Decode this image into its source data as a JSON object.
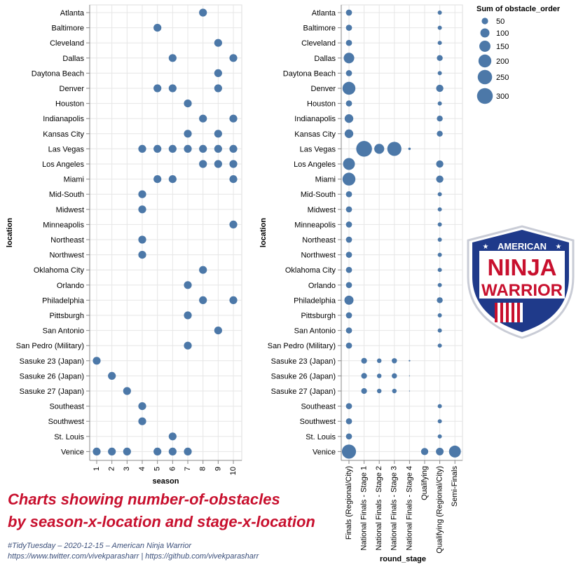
{
  "colors": {
    "mark": "#4c78a8",
    "grid": "#e6e6e6",
    "axis": "#888888",
    "caption_title": "#c8102e",
    "caption_meta": "#3b4f7a",
    "logo_blue": "#1f3a8a",
    "logo_red": "#c8102e"
  },
  "caption": {
    "title_lines": [
      "Charts showing number-of-obstacles",
      "by season-x-location and stage-x-location"
    ],
    "meta_lines": [
      "#TidyTuesday – 2020-12-15 – American Ninja Warrior",
      "https://www.twitter.com/vivekparasharr  |  https://github.com/vivekparasharr"
    ]
  },
  "logo": {
    "top_text": "AMERICAN",
    "mid_text": "NINJA",
    "bottom_text": "WARRIOR",
    "icon": "american-ninja-warrior-shield-logo"
  },
  "chart_data": [
    {
      "type": "scatter",
      "xlabel": "season",
      "ylabel": "location",
      "x_ticks": [
        1,
        2,
        3,
        4,
        5,
        6,
        7,
        8,
        9,
        10
      ],
      "xlim": [
        0.7,
        10.6
      ],
      "locations": [
        "Atlanta",
        "Baltimore",
        "Cleveland",
        "Dallas",
        "Daytona Beach",
        "Denver",
        "Houston",
        "Indianapolis",
        "Kansas City",
        "Las Vegas",
        "Los Angeles",
        "Miami",
        "Mid-South",
        "Midwest",
        "Minneapolis",
        "Northeast",
        "Northwest",
        "Oklahoma City",
        "Orlando",
        "Philadelphia",
        "Pittsburgh",
        "San Antonio",
        "San Pedro (Military)",
        "Sasuke 23 (Japan)",
        "Sasuke 26 (Japan)",
        "Sasuke 27 (Japan)",
        "Southeast",
        "Southwest",
        "St. Louis",
        "Venice"
      ],
      "points": [
        {
          "location": "Atlanta",
          "seasons": [
            8
          ]
        },
        {
          "location": "Baltimore",
          "seasons": [
            5
          ]
        },
        {
          "location": "Cleveland",
          "seasons": [
            9
          ]
        },
        {
          "location": "Dallas",
          "seasons": [
            6,
            10
          ]
        },
        {
          "location": "Daytona Beach",
          "seasons": [
            9
          ]
        },
        {
          "location": "Denver",
          "seasons": [
            5,
            6,
            9
          ]
        },
        {
          "location": "Houston",
          "seasons": [
            7
          ]
        },
        {
          "location": "Indianapolis",
          "seasons": [
            8,
            10
          ]
        },
        {
          "location": "Kansas City",
          "seasons": [
            7,
            9
          ]
        },
        {
          "location": "Las Vegas",
          "seasons": [
            4,
            5,
            6,
            7,
            8,
            9,
            10
          ]
        },
        {
          "location": "Los Angeles",
          "seasons": [
            8,
            9,
            10
          ]
        },
        {
          "location": "Miami",
          "seasons": [
            5,
            6,
            10
          ]
        },
        {
          "location": "Mid-South",
          "seasons": [
            4
          ]
        },
        {
          "location": "Midwest",
          "seasons": [
            4
          ]
        },
        {
          "location": "Minneapolis",
          "seasons": [
            10
          ]
        },
        {
          "location": "Northeast",
          "seasons": [
            4
          ]
        },
        {
          "location": "Northwest",
          "seasons": [
            4
          ]
        },
        {
          "location": "Oklahoma City",
          "seasons": [
            8
          ]
        },
        {
          "location": "Orlando",
          "seasons": [
            7
          ]
        },
        {
          "location": "Philadelphia",
          "seasons": [
            8,
            10
          ]
        },
        {
          "location": "Pittsburgh",
          "seasons": [
            7
          ]
        },
        {
          "location": "San Antonio",
          "seasons": [
            9
          ]
        },
        {
          "location": "San Pedro (Military)",
          "seasons": [
            7
          ]
        },
        {
          "location": "Sasuke 23 (Japan)",
          "seasons": [
            1
          ]
        },
        {
          "location": "Sasuke 26 (Japan)",
          "seasons": [
            2
          ]
        },
        {
          "location": "Sasuke 27 (Japan)",
          "seasons": [
            3
          ]
        },
        {
          "location": "Southeast",
          "seasons": [
            4
          ]
        },
        {
          "location": "Southwest",
          "seasons": [
            4
          ]
        },
        {
          "location": "St. Louis",
          "seasons": [
            6
          ]
        },
        {
          "location": "Venice",
          "seasons": [
            1,
            2,
            3,
            5,
            6,
            7
          ]
        }
      ]
    },
    {
      "type": "scatter",
      "xlabel": "round_stage",
      "ylabel": "location",
      "size_field": "Sum of obstacle_order",
      "stages": [
        "Finals (Regional/City)",
        "National Finals - Stage 1",
        "National Finals - Stage 2",
        "National Finals - Stage 3",
        "National Finals - Stage 4",
        "Qualifying",
        "Qualifying (Regional/City)",
        "Semi-Finals"
      ],
      "locations": [
        "Atlanta",
        "Baltimore",
        "Cleveland",
        "Dallas",
        "Daytona Beach",
        "Denver",
        "Houston",
        "Indianapolis",
        "Kansas City",
        "Las Vegas",
        "Los Angeles",
        "Miami",
        "Mid-South",
        "Midwest",
        "Minneapolis",
        "Northeast",
        "Northwest",
        "Oklahoma City",
        "Orlando",
        "Philadelphia",
        "Pittsburgh",
        "San Antonio",
        "San Pedro (Military)",
        "Sasuke 23 (Japan)",
        "Sasuke 26 (Japan)",
        "Sasuke 27 (Japan)",
        "Southeast",
        "Southwest",
        "St. Louis",
        "Venice"
      ],
      "legend": {
        "title": "Sum of obstacle_order",
        "values": [
          50,
          100,
          150,
          200,
          250,
          300
        ]
      },
      "points": [
        {
          "location": "Atlanta",
          "stage": "Finals (Regional/City)",
          "value": 45
        },
        {
          "location": "Atlanta",
          "stage": "Qualifying (Regional/City)",
          "value": 21
        },
        {
          "location": "Baltimore",
          "stage": "Finals (Regional/City)",
          "value": 45
        },
        {
          "location": "Baltimore",
          "stage": "Qualifying (Regional/City)",
          "value": 21
        },
        {
          "location": "Cleveland",
          "stage": "Finals (Regional/City)",
          "value": 45
        },
        {
          "location": "Cleveland",
          "stage": "Qualifying (Regional/City)",
          "value": 21
        },
        {
          "location": "Dallas",
          "stage": "Finals (Regional/City)",
          "value": 135
        },
        {
          "location": "Dallas",
          "stage": "Qualifying (Regional/City)",
          "value": 42
        },
        {
          "location": "Daytona Beach",
          "stage": "Finals (Regional/City)",
          "value": 45
        },
        {
          "location": "Daytona Beach",
          "stage": "Qualifying (Regional/City)",
          "value": 21
        },
        {
          "location": "Denver",
          "stage": "Finals (Regional/City)",
          "value": 200
        },
        {
          "location": "Denver",
          "stage": "Qualifying (Regional/City)",
          "value": 63
        },
        {
          "location": "Houston",
          "stage": "Finals (Regional/City)",
          "value": 45
        },
        {
          "location": "Houston",
          "stage": "Qualifying (Regional/City)",
          "value": 21
        },
        {
          "location": "Indianapolis",
          "stage": "Finals (Regional/City)",
          "value": 90
        },
        {
          "location": "Indianapolis",
          "stage": "Qualifying (Regional/City)",
          "value": 42
        },
        {
          "location": "Kansas City",
          "stage": "Finals (Regional/City)",
          "value": 90
        },
        {
          "location": "Kansas City",
          "stage": "Qualifying (Regional/City)",
          "value": 42
        },
        {
          "location": "Las Vegas",
          "stage": "National Finals - Stage 1",
          "value": 300
        },
        {
          "location": "Las Vegas",
          "stage": "National Finals - Stage 2",
          "value": 120
        },
        {
          "location": "Las Vegas",
          "stage": "National Finals - Stage 3",
          "value": 240
        },
        {
          "location": "Las Vegas",
          "stage": "National Finals - Stage 4",
          "value": 7
        },
        {
          "location": "Los Angeles",
          "stage": "Finals (Regional/City)",
          "value": 170
        },
        {
          "location": "Los Angeles",
          "stage": "Qualifying (Regional/City)",
          "value": 63
        },
        {
          "location": "Miami",
          "stage": "Finals (Regional/City)",
          "value": 200
        },
        {
          "location": "Miami",
          "stage": "Qualifying (Regional/City)",
          "value": 63
        },
        {
          "location": "Mid-South",
          "stage": "Finals (Regional/City)",
          "value": 45
        },
        {
          "location": "Mid-South",
          "stage": "Qualifying (Regional/City)",
          "value": 21
        },
        {
          "location": "Midwest",
          "stage": "Finals (Regional/City)",
          "value": 45
        },
        {
          "location": "Midwest",
          "stage": "Qualifying (Regional/City)",
          "value": 21
        },
        {
          "location": "Minneapolis",
          "stage": "Finals (Regional/City)",
          "value": 45
        },
        {
          "location": "Minneapolis",
          "stage": "Qualifying (Regional/City)",
          "value": 21
        },
        {
          "location": "Northeast",
          "stage": "Finals (Regional/City)",
          "value": 45
        },
        {
          "location": "Northeast",
          "stage": "Qualifying (Regional/City)",
          "value": 21
        },
        {
          "location": "Northwest",
          "stage": "Finals (Regional/City)",
          "value": 45
        },
        {
          "location": "Northwest",
          "stage": "Qualifying (Regional/City)",
          "value": 21
        },
        {
          "location": "Oklahoma City",
          "stage": "Finals (Regional/City)",
          "value": 45
        },
        {
          "location": "Oklahoma City",
          "stage": "Qualifying (Regional/City)",
          "value": 21
        },
        {
          "location": "Orlando",
          "stage": "Finals (Regional/City)",
          "value": 45
        },
        {
          "location": "Orlando",
          "stage": "Qualifying (Regional/City)",
          "value": 21
        },
        {
          "location": "Philadelphia",
          "stage": "Finals (Regional/City)",
          "value": 100
        },
        {
          "location": "Philadelphia",
          "stage": "Qualifying (Regional/City)",
          "value": 42
        },
        {
          "location": "Pittsburgh",
          "stage": "Finals (Regional/City)",
          "value": 45
        },
        {
          "location": "Pittsburgh",
          "stage": "Qualifying (Regional/City)",
          "value": 21
        },
        {
          "location": "San Antonio",
          "stage": "Finals (Regional/City)",
          "value": 45
        },
        {
          "location": "San Antonio",
          "stage": "Qualifying (Regional/City)",
          "value": 21
        },
        {
          "location": "San Pedro (Military)",
          "stage": "Finals (Regional/City)",
          "value": 45
        },
        {
          "location": "San Pedro (Military)",
          "stage": "Qualifying (Regional/City)",
          "value": 21
        },
        {
          "location": "Sasuke 23 (Japan)",
          "stage": "National Finals - Stage 1",
          "value": 40
        },
        {
          "location": "Sasuke 23 (Japan)",
          "stage": "National Finals - Stage 2",
          "value": 25
        },
        {
          "location": "Sasuke 23 (Japan)",
          "stage": "National Finals - Stage 3",
          "value": 33
        },
        {
          "location": "Sasuke 23 (Japan)",
          "stage": "National Finals - Stage 4",
          "value": 3
        },
        {
          "location": "Sasuke 26 (Japan)",
          "stage": "National Finals - Stage 1",
          "value": 40
        },
        {
          "location": "Sasuke 26 (Japan)",
          "stage": "National Finals - Stage 2",
          "value": 25
        },
        {
          "location": "Sasuke 26 (Japan)",
          "stage": "National Finals - Stage 3",
          "value": 33
        },
        {
          "location": "Sasuke 26 (Japan)",
          "stage": "National Finals - Stage 4",
          "value": 1
        },
        {
          "location": "Sasuke 27 (Japan)",
          "stage": "National Finals - Stage 1",
          "value": 40
        },
        {
          "location": "Sasuke 27 (Japan)",
          "stage": "National Finals - Stage 2",
          "value": 25
        },
        {
          "location": "Sasuke 27 (Japan)",
          "stage": "National Finals - Stage 3",
          "value": 25
        },
        {
          "location": "Sasuke 27 (Japan)",
          "stage": "National Finals - Stage 4",
          "value": 1
        },
        {
          "location": "Southeast",
          "stage": "Finals (Regional/City)",
          "value": 45
        },
        {
          "location": "Southeast",
          "stage": "Qualifying (Regional/City)",
          "value": 21
        },
        {
          "location": "Southwest",
          "stage": "Finals (Regional/City)",
          "value": 45
        },
        {
          "location": "Southwest",
          "stage": "Qualifying (Regional/City)",
          "value": 21
        },
        {
          "location": "St. Louis",
          "stage": "Finals (Regional/City)",
          "value": 45
        },
        {
          "location": "St. Louis",
          "stage": "Qualifying (Regional/City)",
          "value": 21
        },
        {
          "location": "Venice",
          "stage": "Finals (Regional/City)",
          "value": 240
        },
        {
          "location": "Venice",
          "stage": "Qualifying",
          "value": 63
        },
        {
          "location": "Venice",
          "stage": "Qualifying (Regional/City)",
          "value": 70
        },
        {
          "location": "Venice",
          "stage": "Semi-Finals",
          "value": 170
        }
      ]
    }
  ]
}
